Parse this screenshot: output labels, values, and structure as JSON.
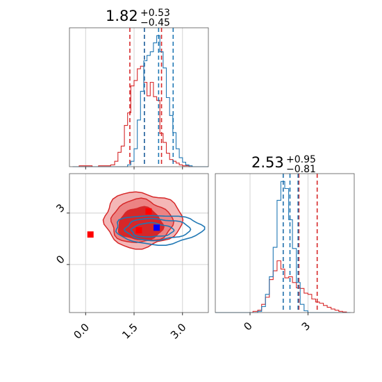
{
  "chart_data": [
    {
      "panel": "marginal-1",
      "type": "histogram",
      "title": {
        "value": "1.82",
        "plus": "+0.53",
        "minus": "−0.45"
      },
      "x": [
        -0.3,
        -0.1,
        0.1,
        0.3,
        0.5,
        0.7,
        0.85,
        0.95,
        1.05,
        1.15,
        1.25,
        1.35,
        1.45,
        1.55,
        1.65,
        1.75,
        1.85,
        1.95,
        2.05,
        2.15,
        2.25,
        2.35,
        2.45,
        2.55,
        2.65,
        2.75,
        2.85,
        2.95,
        3.05,
        3.15,
        3.25,
        3.35,
        3.5,
        3.7
      ],
      "series": [
        {
          "color": "#d62728",
          "counts": [
            0,
            1,
            1,
            0,
            1,
            1,
            2,
            6,
            16,
            23,
            46,
            60,
            90,
            96,
            109,
            112,
            94,
            79,
            94,
            78,
            74,
            37,
            27,
            15,
            8,
            6,
            4,
            2,
            1,
            1,
            0,
            0,
            0,
            0
          ],
          "quantiles": [
            1.37,
            1.82,
            2.35
          ]
        },
        {
          "color": "#1f77b4",
          "counts": [
            0,
            0,
            0,
            0,
            0,
            0,
            0,
            0,
            0,
            0,
            0,
            2,
            6,
            20,
            52,
            84,
            118,
            124,
            128,
            138,
            146,
            128,
            110,
            77,
            57,
            38,
            20,
            10,
            5,
            2,
            1,
            0,
            0,
            0
          ],
          "quantiles": [
            1.82,
            2.26,
            2.71
          ]
        }
      ],
      "xlim": [
        -0.5,
        3.8
      ]
    },
    {
      "panel": "marginal-2",
      "type": "histogram",
      "title": {
        "value": "2.53",
        "plus": "+0.95",
        "minus": "−0.81"
      },
      "x": [
        -1.5,
        0,
        0.3,
        0.5,
        0.7,
        0.9,
        1.1,
        1.3,
        1.5,
        1.7,
        1.9,
        2.1,
        2.3,
        2.5,
        2.7,
        2.9,
        3.1,
        3.3,
        3.5,
        3.7,
        3.9,
        4.1,
        4.3,
        4.5,
        4.7,
        4.9,
        5.1
      ],
      "series": [
        {
          "color": "#d62728",
          "counts": [
            0,
            0,
            2,
            4,
            14,
            26,
            56,
            71,
            88,
            74,
            59,
            61,
            51,
            42,
            41,
            33,
            31,
            23,
            18,
            16,
            12,
            9,
            6,
            4,
            2,
            1,
            0
          ],
          "quantiles": [
            1.72,
            2.53,
            3.48
          ]
        },
        {
          "color": "#1f77b4",
          "counts": [
            0,
            0,
            0,
            2,
            10,
            31,
            61,
            111,
            191,
            223,
            211,
            158,
            109,
            51,
            14,
            3,
            0,
            0,
            0,
            0,
            0,
            0,
            0,
            0,
            0,
            0,
            0
          ],
          "quantiles": [
            1.72,
            2.07,
            2.49
          ]
        }
      ],
      "xlim": [
        -1.8,
        5.4
      ]
    },
    {
      "panel": "joint",
      "type": "contour",
      "x_ticks": [
        "0.0",
        "1.5",
        "3.0"
      ],
      "x_tick_values": [
        0.0,
        1.5,
        3.0
      ],
      "y_ticks": [
        "0",
        "3"
      ],
      "y_tick_values": [
        0,
        3
      ],
      "xlim": [
        -0.5,
        3.8
      ],
      "ylim": [
        -2.8,
        5.3
      ],
      "red_filled_contours": [
        {
          "level": "outer",
          "cx": 1.75,
          "cy": 2.6,
          "rx": 1.2,
          "ry": 1.6,
          "fill": "#f3b3b3"
        },
        {
          "level": "middle",
          "cx": 1.72,
          "cy": 2.5,
          "rx": 0.95,
          "ry": 1.25,
          "fill": "#eb7f80"
        },
        {
          "level": "inner",
          "cx": 1.7,
          "cy": 2.35,
          "rx": 0.68,
          "ry": 0.95,
          "fill": "#d52223"
        }
      ],
      "blue_contours": [
        {
          "level": "outer",
          "cx": 2.25,
          "cy": 2.05,
          "rx": 1.35,
          "ry": 0.85
        },
        {
          "level": "middle",
          "cx": 2.2,
          "cy": 2.05,
          "rx": 1.0,
          "ry": 0.62
        },
        {
          "level": "inner",
          "cx": 2.05,
          "cy": 2.0,
          "rx": 0.65,
          "ry": 0.4
        }
      ],
      "markers": [
        {
          "x": 0.15,
          "y": 1.75,
          "color": "#ff0000"
        },
        {
          "x": 1.95,
          "y": 3.1,
          "color": "#ff0000"
        },
        {
          "x": 1.65,
          "y": 2.0,
          "color": "#ff0000"
        },
        {
          "x": 2.2,
          "y": 2.15,
          "color": "#0000ff"
        }
      ]
    }
  ],
  "colors": {
    "red": "#d62728",
    "blue": "#1f77b4",
    "grid": "#c8c8c8"
  }
}
